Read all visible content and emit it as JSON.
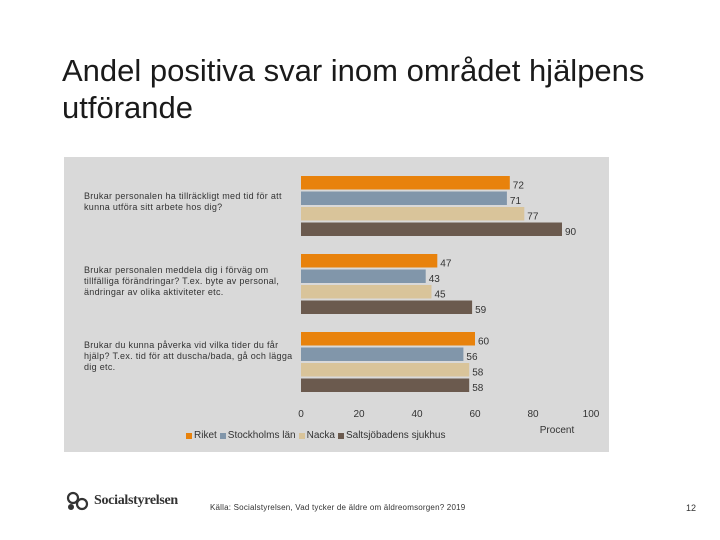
{
  "title": "Andel positiva svar inom området hjälpens utförande",
  "chart_data": {
    "type": "bar",
    "orientation": "horizontal",
    "categories": [
      "Brukar personalen ha tillräckligt med tid för att kunna utföra sitt arbete hos dig?",
      "Brukar personalen meddela dig i förväg om tillfälliga förändringar? T.ex. byte av personal, ändringar av olika aktiviteter etc.",
      "Brukar du kunna påverka vid vilka tider du får hjälp? T.ex. tid för att duscha/bada, gå och lägga dig etc."
    ],
    "series": [
      {
        "name": "Riket",
        "color": "#e8820c",
        "values": [
          72,
          47,
          60
        ]
      },
      {
        "name": "Stockholms län",
        "color": "#8196aa",
        "values": [
          71,
          43,
          56
        ]
      },
      {
        "name": "Nacka",
        "color": "#d9c49a",
        "values": [
          77,
          45,
          58
        ]
      },
      {
        "name": "Saltsjöbadens sjukhus",
        "color": "#6b5a4e",
        "values": [
          90,
          59,
          58
        ]
      }
    ],
    "xlim": [
      0,
      100
    ],
    "xticks": [
      "0",
      "20",
      "40",
      "60",
      "80",
      "100"
    ],
    "xlabel": "Procent",
    "legend_position": "bottom"
  },
  "footer": {
    "logo_text": "Socialstyrelsen",
    "source": "Källa: Socialstyrelsen, Vad tycker de äldre om äldreomsorgen? 2019",
    "page_number": "12"
  }
}
